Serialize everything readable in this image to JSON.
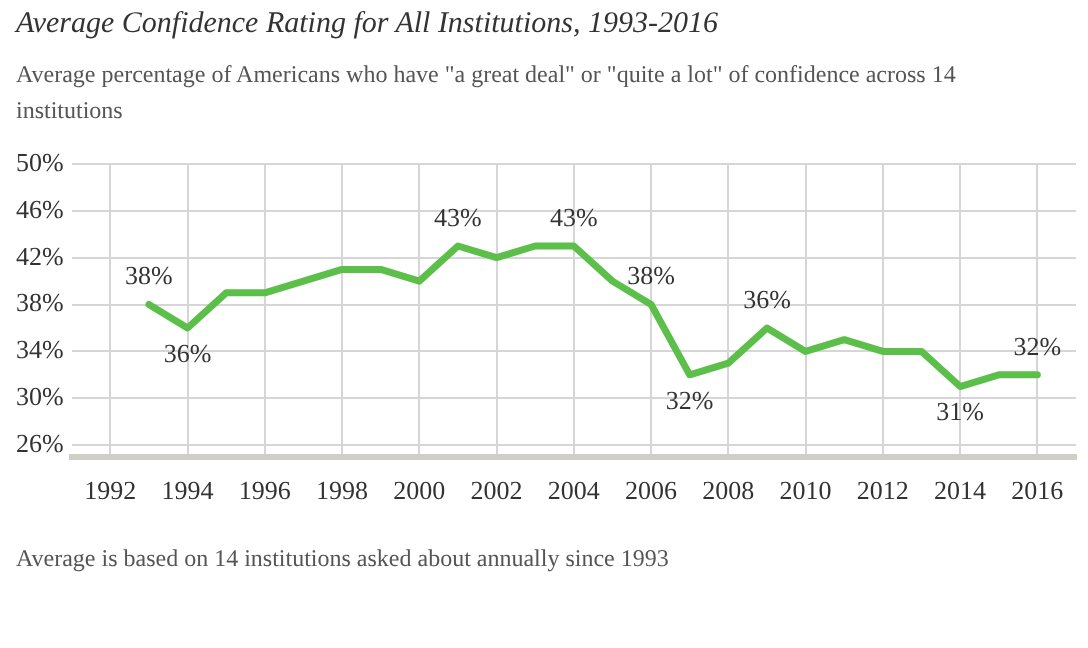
{
  "chart_data": {
    "type": "line",
    "title": "Average Confidence Rating for All Institutions, 1993-2016",
    "subtitle": "Average percentage of Americans who have \"a great deal\" or \"quite a lot\" of confidence across 14 institutions",
    "x": [
      1993,
      1994,
      1995,
      1996,
      1997,
      1998,
      1999,
      2000,
      2001,
      2002,
      2003,
      2004,
      2005,
      2006,
      2007,
      2008,
      2009,
      2010,
      2011,
      2012,
      2013,
      2014,
      2015,
      2016
    ],
    "series": [
      {
        "color": "#5cbf4a",
        "values": [
          38,
          36,
          39,
          39,
          40,
          41,
          41,
          40,
          43,
          42,
          43,
          43,
          40,
          38,
          32,
          33,
          36,
          34,
          35,
          34,
          34,
          31,
          32,
          32
        ]
      }
    ],
    "xlim": [
      1991,
      2017
    ],
    "xticks": [
      1992,
      1994,
      1996,
      1998,
      2000,
      2002,
      2004,
      2006,
      2008,
      2010,
      2012,
      2014,
      2016
    ],
    "ylim": [
      25,
      50
    ],
    "yticks": [
      {
        "value": 26,
        "label": "26%"
      },
      {
        "value": 30,
        "label": "30%"
      },
      {
        "value": 34,
        "label": "34%"
      },
      {
        "value": 38,
        "label": "38%"
      },
      {
        "value": 42,
        "label": "42%"
      },
      {
        "value": 46,
        "label": "46%"
      },
      {
        "value": 50,
        "label": "50%"
      }
    ],
    "grid": true,
    "legend": false,
    "marker": "none",
    "line_style": "solid",
    "annotations": [
      {
        "text": "38%",
        "x": 1993,
        "y": 38
      },
      {
        "text": "36%",
        "x": 1994,
        "y": 36
      },
      {
        "text": "43%",
        "x": 2001,
        "y": 43
      },
      {
        "text": "43%",
        "x": 2004,
        "y": 43
      },
      {
        "text": "38%",
        "x": 2006,
        "y": 38
      },
      {
        "text": "32%",
        "x": 2007,
        "y": 32
      },
      {
        "text": "36%",
        "x": 2009,
        "y": 36
      },
      {
        "text": "31%",
        "x": 2014,
        "y": 31
      },
      {
        "text": "32%",
        "x": 2016,
        "y": 32
      },
      "Average is based on 14 institutions asked about annually since 1993"
    ]
  }
}
